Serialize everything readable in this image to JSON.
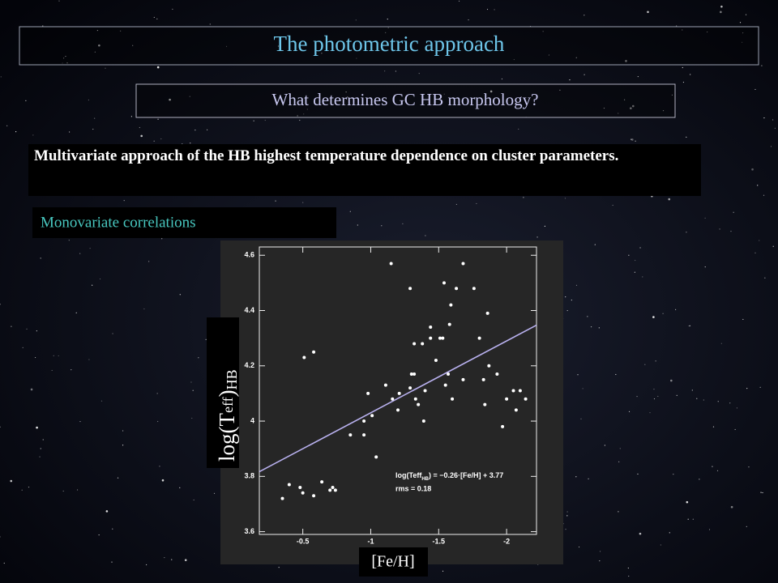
{
  "title": "The photometric approach",
  "subtitle": "What determines GC HB morphology?",
  "body": "Multivariate approach of the HB highest temperature dependence on cluster parameters.",
  "section": "Monovariate correlations",
  "chart_data": {
    "type": "scatter",
    "x_label": "[Fe/H]",
    "y_label": {
      "main": "log(T",
      "sub1": "eff",
      "close": ")",
      "sub2": "HB"
    },
    "annotation": {
      "main": "log(Teff",
      "sub": "HB",
      "rest": ") = −0.26·[Fe/H] + 3.77",
      "rms": "rms = 0.18"
    },
    "fit": {
      "slope": -0.26,
      "intercept": 3.77,
      "color": "#b8b0ee"
    },
    "color": "#ffffff",
    "xlim": [
      -0.18,
      -2.22
    ],
    "ylim": [
      3.59,
      4.63
    ],
    "xticks": [
      -0.5,
      -1,
      -1.5,
      -2
    ],
    "yticks": [
      3.6,
      3.8,
      4,
      4.2,
      4.4,
      4.6
    ],
    "x": [
      -0.35,
      -0.4,
      -0.48,
      -0.5,
      -0.51,
      -0.58,
      -0.58,
      -0.64,
      -0.7,
      -0.72,
      -0.74,
      -0.85,
      -0.95,
      -0.95,
      -0.98,
      -1.01,
      -1.04,
      -1.11,
      -1.15,
      -1.16,
      -1.2,
      -1.21,
      -1.29,
      -1.29,
      -1.3,
      -1.32,
      -1.32,
      -1.33,
      -1.35,
      -1.38,
      -1.39,
      -1.4,
      -1.44,
      -1.44,
      -1.48,
      -1.51,
      -1.53,
      -1.54,
      -1.55,
      -1.57,
      -1.58,
      -1.59,
      -1.6,
      -1.63,
      -1.68,
      -1.68,
      -1.76,
      -1.8,
      -1.83,
      -1.84,
      -1.86,
      -1.87,
      -1.93,
      -1.97,
      -2.0,
      -2.05,
      -2.07,
      -2.1,
      -2.14
    ],
    "values": [
      3.72,
      3.77,
      3.76,
      3.74,
      4.23,
      4.25,
      3.73,
      3.78,
      3.75,
      3.76,
      3.75,
      3.95,
      3.95,
      4.0,
      4.1,
      4.02,
      3.87,
      4.13,
      4.57,
      4.08,
      4.04,
      4.1,
      4.12,
      4.48,
      4.17,
      4.28,
      4.17,
      4.08,
      4.06,
      4.28,
      4.0,
      4.11,
      4.34,
      4.3,
      4.22,
      4.3,
      4.3,
      4.5,
      4.13,
      4.17,
      4.35,
      4.42,
      4.08,
      4.48,
      4.57,
      4.15,
      4.48,
      4.3,
      4.15,
      4.06,
      4.39,
      4.2,
      4.17,
      3.98,
      4.08,
      4.11,
      4.04,
      4.11,
      4.08
    ]
  }
}
